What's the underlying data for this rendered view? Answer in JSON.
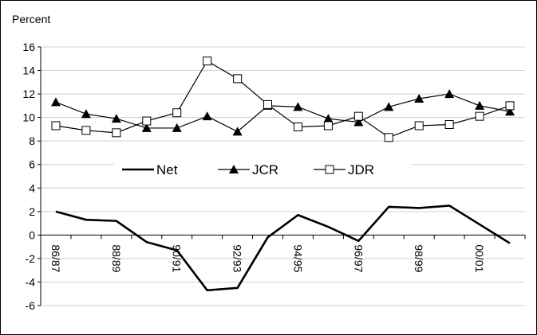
{
  "chart_data": {
    "type": "line",
    "title": "",
    "ylabel": "Percent",
    "xlabel": "",
    "ylim": [
      -6,
      16
    ],
    "ytick_step": 2,
    "grid": "horizontal",
    "legend_position": "middle",
    "categories": [
      "86/87",
      "87/88",
      "88/89",
      "89/90",
      "90/91",
      "91/92",
      "92/93",
      "93/94",
      "94/95",
      "95/96",
      "96/97",
      "97/98",
      "98/99",
      "99/00",
      "00/01",
      "01/02"
    ],
    "tick_labels": [
      "86/87",
      "88/89",
      "90/91",
      "92/93",
      "94/95",
      "96/97",
      "98/99",
      "00/01"
    ],
    "series": [
      {
        "name": "Net",
        "marker": "none",
        "color": "#000000",
        "values": [
          2.0,
          1.3,
          1.2,
          -0.6,
          -1.3,
          -4.7,
          -4.5,
          -0.2,
          1.7,
          0.7,
          -0.5,
          2.4,
          2.3,
          2.5,
          0.9,
          -0.7
        ]
      },
      {
        "name": "JCR",
        "marker": "triangle",
        "color": "#000000",
        "values": [
          11.3,
          10.3,
          9.9,
          9.1,
          9.1,
          10.1,
          8.8,
          11.0,
          10.9,
          9.9,
          9.6,
          10.9,
          11.6,
          12.0,
          11.0,
          10.5
        ]
      },
      {
        "name": "JDR",
        "marker": "square",
        "color": "#000000",
        "values": [
          9.3,
          8.9,
          8.7,
          9.7,
          10.4,
          14.8,
          13.3,
          11.1,
          9.2,
          9.3,
          10.1,
          8.3,
          9.3,
          9.4,
          10.1,
          11.0
        ]
      }
    ]
  }
}
